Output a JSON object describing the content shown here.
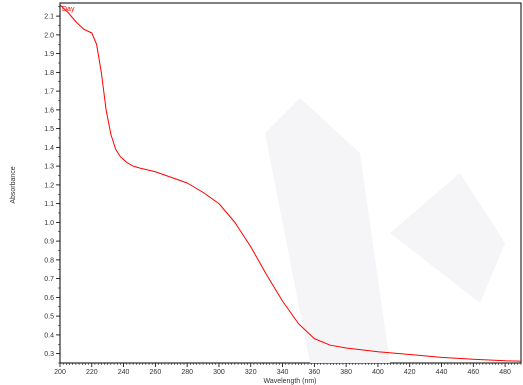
{
  "chart_data": {
    "type": "line",
    "xlabel": "Wavelength (nm)",
    "ylabel": "Absorbance",
    "xlim": [
      200,
      490
    ],
    "ylim": [
      0.25,
      2.17
    ],
    "x_ticks": [
      200,
      220,
      240,
      260,
      280,
      300,
      320,
      340,
      360,
      380,
      400,
      420,
      440,
      460,
      480
    ],
    "y_ticks": [
      0.3,
      0.4,
      0.5,
      0.6,
      0.7,
      0.8,
      0.9,
      1.0,
      1.1,
      1.2,
      1.3,
      1.4,
      1.5,
      1.6,
      1.7,
      1.8,
      1.9,
      2.0,
      2.1
    ],
    "grid": false,
    "series": [
      {
        "name": "Day",
        "color": "#ff0000",
        "x": [
          200,
          205,
          210,
          215,
          220,
          223,
          226,
          229,
          232,
          235,
          238,
          242,
          246,
          250,
          260,
          270,
          280,
          290,
          300,
          310,
          320,
          330,
          340,
          350,
          360,
          370,
          380,
          390,
          400,
          420,
          440,
          460,
          480,
          490
        ],
        "y": [
          2.16,
          2.12,
          2.07,
          2.03,
          2.01,
          1.95,
          1.8,
          1.6,
          1.47,
          1.39,
          1.35,
          1.32,
          1.3,
          1.29,
          1.27,
          1.24,
          1.21,
          1.16,
          1.1,
          1.0,
          0.87,
          0.72,
          0.58,
          0.46,
          0.38,
          0.345,
          0.33,
          0.32,
          0.31,
          0.295,
          0.28,
          0.27,
          0.262,
          0.26
        ]
      }
    ]
  }
}
